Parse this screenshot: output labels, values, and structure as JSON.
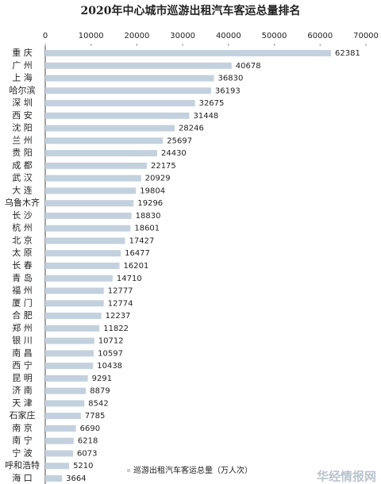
{
  "chart_data": {
    "type": "bar",
    "orientation": "horizontal",
    "title": "2020年中心城市巡游出租汽车客运总量排名",
    "categories": [
      "重 庆",
      "广 州",
      "上 海",
      "哈尔滨",
      "深 圳",
      "西 安",
      "沈 阳",
      "兰 州",
      "贵 阳",
      "成 都",
      "武 汉",
      "大 连",
      "乌鲁木齐",
      "长 沙",
      "杭 州",
      "北 京",
      "太 原",
      "长 春",
      "青 岛",
      "福 州",
      "厦 门",
      "合 肥",
      "郑 州",
      "银 川",
      "南 昌",
      "西 宁",
      "昆 明",
      "济 南",
      "天 津",
      "石家庄",
      "南 京",
      "南 宁",
      "宁 波",
      "呼和浩特",
      "海 口"
    ],
    "series": [
      {
        "name": "巡游出租汽车客运总量（万人次）",
        "color": "#c3d1de",
        "values": [
          62381,
          40678,
          36830,
          36193,
          32675,
          31448,
          28246,
          25697,
          24430,
          22175,
          20929,
          19804,
          19296,
          18830,
          18601,
          17427,
          16477,
          16201,
          14710,
          12777,
          12774,
          12237,
          11822,
          10712,
          10597,
          10438,
          9291,
          8879,
          8542,
          7785,
          6690,
          6218,
          6073,
          5210,
          3664
        ]
      }
    ],
    "xlim": [
      0,
      70000
    ],
    "xticks": [
      0,
      10000,
      20000,
      30000,
      40000,
      50000,
      60000,
      70000
    ],
    "grid": false,
    "legend": "bottom",
    "watermark": "华经情报网"
  }
}
